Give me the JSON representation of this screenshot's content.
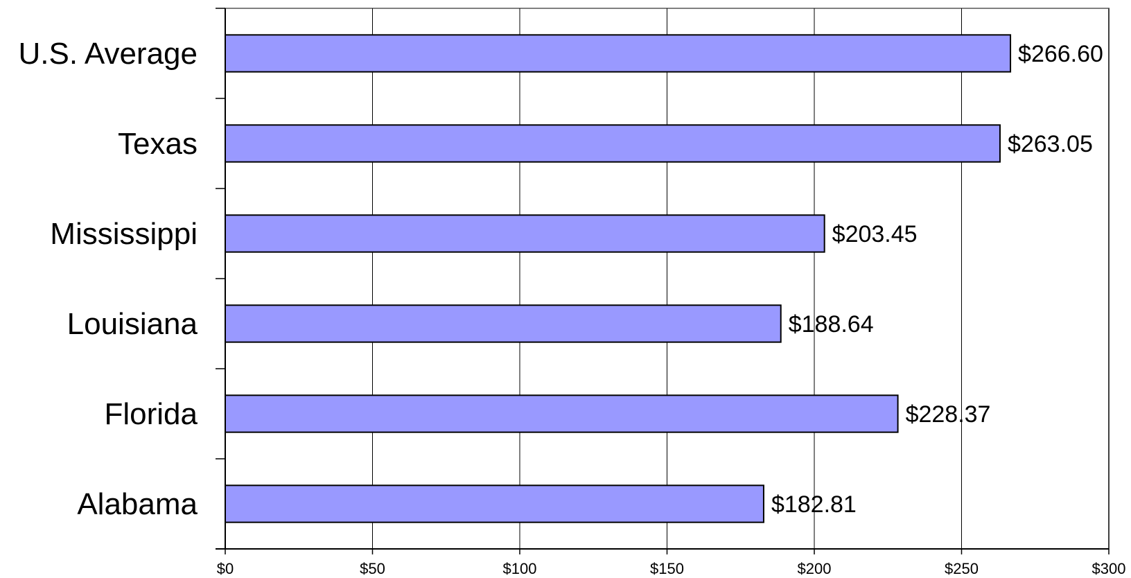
{
  "chart_data": {
    "type": "bar",
    "orientation": "horizontal",
    "categories": [
      "U.S. Average",
      "Texas",
      "Mississippi",
      "Louisiana",
      "Florida",
      "Alabama"
    ],
    "values": [
      266.6,
      263.05,
      203.45,
      188.64,
      228.37,
      182.81
    ],
    "data_labels": [
      "$266.60",
      "$263.05",
      "$203.45",
      "$188.64",
      "$228.37",
      "$182.81"
    ],
    "title": "",
    "xlabel": "",
    "ylabel": "",
    "xlim": [
      0,
      300
    ],
    "x_ticks": [
      0,
      50,
      100,
      150,
      200,
      250,
      300
    ],
    "x_tick_labels": [
      "$0",
      "$50",
      "$100",
      "$150",
      "$200",
      "$250",
      "$300"
    ],
    "grid": "vertical",
    "legend": "none",
    "colors": {
      "bar_fill": "#9999ff",
      "bar_stroke": "#000000",
      "grid": "#000000",
      "plot_border": "#808080"
    }
  }
}
